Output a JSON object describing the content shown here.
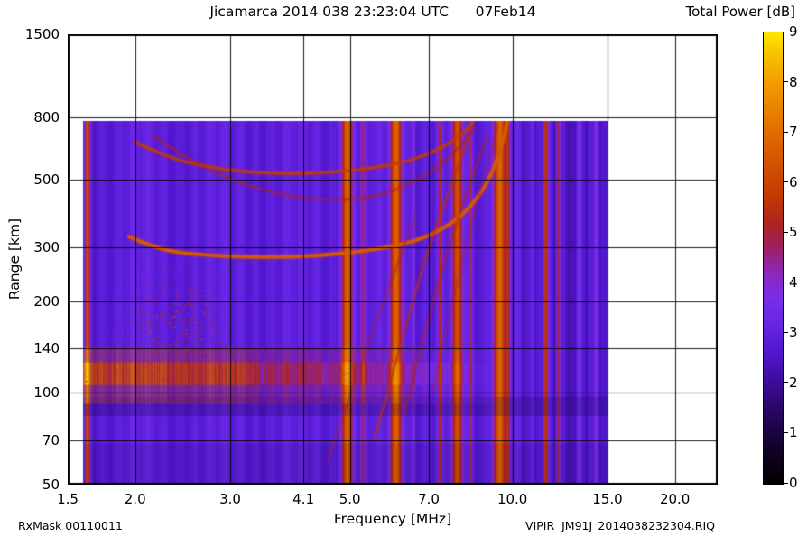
{
  "title": "Jicamarca 2014 038 23:23:04 UTC      07Feb14",
  "colorbar_label": "Total Power [dB]",
  "footer": {
    "left": "RxMask 00110011",
    "right": "VIPIR  JM91J_2014038232304.RIQ"
  },
  "chart_data": {
    "type": "heatmap",
    "title": "Jicamarca 2014 038 23:23:04 UTC      07Feb14",
    "xlabel": "Frequency [MHz]",
    "ylabel": "Range [km]",
    "x_scale": "log",
    "x_range": [
      1.5,
      24
    ],
    "x_ticks": [
      {
        "v": 1.5,
        "label": "1.5"
      },
      {
        "v": 2.0,
        "label": "2.0"
      },
      {
        "v": 3.0,
        "label": "3.0"
      },
      {
        "v": 4.1,
        "label": "4.1"
      },
      {
        "v": 5.0,
        "label": "5.0"
      },
      {
        "v": 7.0,
        "label": "7.0"
      },
      {
        "v": 10.0,
        "label": "10.0"
      },
      {
        "v": 15.0,
        "label": "15.0"
      },
      {
        "v": 20.0,
        "label": "20.0"
      }
    ],
    "y_scale": "log",
    "y_range": [
      50,
      1500
    ],
    "y_ticks": [
      {
        "v": 50,
        "label": "50"
      },
      {
        "v": 70,
        "label": "70"
      },
      {
        "v": 100,
        "label": "100"
      },
      {
        "v": 140,
        "label": "140"
      },
      {
        "v": 200,
        "label": "200"
      },
      {
        "v": 300,
        "label": "300"
      },
      {
        "v": 500,
        "label": "500"
      },
      {
        "v": 800,
        "label": "800"
      },
      {
        "v": 1500,
        "label": "1500"
      }
    ],
    "grid": true,
    "colorbar": {
      "label": "Total Power [dB]",
      "min": 0,
      "max": 90,
      "ticks": [
        {
          "v": 0,
          "label": "0"
        },
        {
          "v": 10,
          "label": "10"
        },
        {
          "v": 20,
          "label": "20"
        },
        {
          "v": 30,
          "label": "30"
        },
        {
          "v": 40,
          "label": "40"
        },
        {
          "v": 50,
          "label": "50"
        },
        {
          "v": 60,
          "label": "60"
        },
        {
          "v": 70,
          "label": "70"
        },
        {
          "v": 80,
          "label": "80"
        },
        {
          "v": 90,
          "label": "90"
        }
      ],
      "position": "right"
    },
    "colormap_stops": [
      [
        0,
        "#000000"
      ],
      [
        7,
        "#110226"
      ],
      [
        14,
        "#27065e"
      ],
      [
        21,
        "#3e0da0"
      ],
      [
        27,
        "#5418d2"
      ],
      [
        32,
        "#6726e4"
      ],
      [
        37,
        "#7a2ee8"
      ],
      [
        42,
        "#8c28bc"
      ],
      [
        47,
        "#9e2066"
      ],
      [
        52,
        "#ae2420"
      ],
      [
        58,
        "#c33c00"
      ],
      [
        65,
        "#d45600"
      ],
      [
        72,
        "#e47600"
      ],
      [
        80,
        "#f29c00"
      ],
      [
        86,
        "#f9c400"
      ],
      [
        90,
        "#ffe600"
      ]
    ],
    "data_extent": {
      "f_min": 1.6,
      "f_max": 15.05,
      "r_min": 50,
      "r_max": 782
    },
    "background_db": 29.5,
    "features": {
      "rfi_stripes": [
        {
          "f": 1.63,
          "hw": 1.8,
          "db": 64
        },
        {
          "f": 4.93,
          "hw": 4.5,
          "db": 67
        },
        {
          "f": 5.28,
          "hw": 1.2,
          "db": 46
        },
        {
          "f": 6.08,
          "hw": 4.5,
          "db": 67
        },
        {
          "f": 6.55,
          "hw": 1.2,
          "db": 45
        },
        {
          "f": 7.33,
          "hw": 1.5,
          "db": 50
        },
        {
          "f": 7.9,
          "hw": 3.8,
          "db": 62
        },
        {
          "f": 8.35,
          "hw": 1.2,
          "db": 46
        },
        {
          "f": 9.45,
          "hw": 5.0,
          "db": 68
        },
        {
          "f": 9.8,
          "hw": 1.5,
          "db": 52
        },
        {
          "f": 11.5,
          "hw": 2.5,
          "db": 56
        },
        {
          "f": 12.15,
          "hw": 1.8,
          "db": 52
        },
        {
          "f": 13.3,
          "hw": 1.5,
          "db": 42
        },
        {
          "f": 14.3,
          "hw": 1.5,
          "db": 40
        }
      ],
      "dark_region_fmin": 10.3,
      "dark_band": {
        "r_lo": 84,
        "r_hi": 97,
        "alpha": 0.22
      },
      "low_band": {
        "r_lo": 50,
        "r_hi": 68,
        "alpha": 0.1
      },
      "e_region_band": {
        "r_center": 116,
        "r_half": 10,
        "f_fade_end": 9.3,
        "db_boost": 26,
        "low_f_extra": 6,
        "low_f_limit": 3.3
      },
      "sporadic_blob": {
        "f": 2.4,
        "r": 168,
        "f_sigma": 0.35,
        "r_sigma": 45,
        "count": 1200,
        "db_min": 36,
        "db_span": 26
      },
      "band_speckle": {
        "f_max": 5.0,
        "r_center": 118,
        "count": 400,
        "db_min": 40,
        "db_span": 22
      },
      "traces": [
        {
          "name": "f-layer-o-trace",
          "db": 66,
          "width": 3.5,
          "alpha": 0.95,
          "points": [
            [
              1.95,
              325
            ],
            [
              2.2,
              296
            ],
            [
              2.6,
              284
            ],
            [
              3.2,
              279
            ],
            [
              4.0,
              279
            ],
            [
              5.0,
              288
            ],
            [
              6.0,
              302
            ],
            [
              6.8,
              320
            ],
            [
              7.5,
              348
            ],
            [
              8.2,
              392
            ],
            [
              8.8,
              458
            ],
            [
              9.2,
              535
            ],
            [
              9.5,
              625
            ],
            [
              9.7,
              715
            ],
            [
              9.78,
              780
            ]
          ]
        },
        {
          "name": "f-layer-second-hop",
          "db": 58,
          "width": 3,
          "alpha": 0.75,
          "points": [
            [
              2.0,
              665
            ],
            [
              2.3,
              592
            ],
            [
              2.7,
              552
            ],
            [
              3.2,
              530
            ],
            [
              4.0,
              522
            ],
            [
              5.0,
              534
            ],
            [
              6.0,
              560
            ],
            [
              6.8,
              595
            ],
            [
              7.5,
              645
            ],
            [
              8.1,
              705
            ],
            [
              8.45,
              770
            ]
          ]
        },
        {
          "name": "high-arc",
          "db": 52,
          "width": 2.2,
          "alpha": 0.5,
          "points": [
            [
              2.15,
              700
            ],
            [
              2.6,
              560
            ],
            [
              3.3,
              470
            ],
            [
              4.2,
              430
            ],
            [
              5.2,
              430
            ],
            [
              6.2,
              465
            ],
            [
              7.2,
              540
            ],
            [
              8.0,
              640
            ],
            [
              8.5,
              740
            ]
          ]
        },
        {
          "name": "oblique-1",
          "db": 55,
          "width": 2,
          "alpha": 0.6,
          "points": [
            [
              5.55,
              70
            ],
            [
              6.3,
              160
            ],
            [
              7.0,
              300
            ],
            [
              7.7,
              480
            ],
            [
              8.3,
              690
            ]
          ]
        },
        {
          "name": "oblique-2",
          "db": 52,
          "width": 1.8,
          "alpha": 0.5,
          "points": [
            [
              6.3,
              85
            ],
            [
              7.2,
              220
            ],
            [
              8.2,
              450
            ],
            [
              9.0,
              700
            ]
          ]
        },
        {
          "name": "oblique-3",
          "db": 50,
          "width": 1.8,
          "alpha": 0.45,
          "points": [
            [
              4.55,
              60
            ],
            [
              5.2,
              120
            ],
            [
              6.0,
              240
            ],
            [
              6.6,
              380
            ]
          ]
        },
        {
          "name": "oblique-4",
          "db": 48,
          "width": 1.6,
          "alpha": 0.4,
          "points": [
            [
              7.1,
              100
            ],
            [
              8.0,
              260
            ],
            [
              9.0,
              560
            ],
            [
              9.4,
              760
            ]
          ]
        }
      ]
    }
  }
}
